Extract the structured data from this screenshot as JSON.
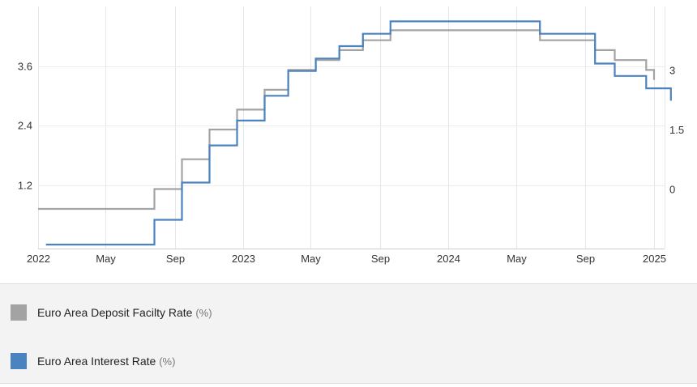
{
  "chart_data": {
    "type": "line",
    "step": true,
    "x_labels": [
      "2022",
      "May",
      "Sep",
      "2023",
      "May",
      "Sep",
      "2024",
      "May",
      "Sep",
      "2025"
    ],
    "x_tick_dates": [
      "2022-01",
      "2022-05",
      "2022-09",
      "2023-01",
      "2023-05",
      "2023-09",
      "2024-01",
      "2024-05",
      "2024-09",
      "2025-01"
    ],
    "xlim": [
      "2022-01",
      "2025-02"
    ],
    "y_left": {
      "ticks": [
        1.2,
        2.4,
        3.6
      ],
      "tick_labels": [
        "1.2",
        "2.4",
        "3.6"
      ],
      "range": [
        -0.08,
        4.8
      ]
    },
    "y_right": {
      "ticks": [
        0,
        1.5,
        3
      ],
      "tick_labels": [
        "0",
        "1.5",
        "3"
      ],
      "range": [
        -1.5,
        4.6
      ]
    },
    "grid": true,
    "legend_position": "bottom",
    "series": [
      {
        "name": "Euro Area Deposit Facilty Rate",
        "unit": "(%)",
        "axis": "right",
        "color": "#a3a3a3",
        "points": [
          [
            "2022-01-01",
            -0.5
          ],
          [
            "2022-07-27",
            0
          ],
          [
            "2022-09-14",
            0.75
          ],
          [
            "2022-11-02",
            1.5
          ],
          [
            "2022-12-21",
            2
          ],
          [
            "2023-02-08",
            2.5
          ],
          [
            "2023-03-22",
            3
          ],
          [
            "2023-05-10",
            3.25
          ],
          [
            "2023-06-21",
            3.5
          ],
          [
            "2023-08-02",
            3.75
          ],
          [
            "2023-09-20",
            4
          ],
          [
            "2024-06-12",
            3.75
          ],
          [
            "2024-09-18",
            3.5
          ],
          [
            "2024-10-23",
            3.25
          ],
          [
            "2024-12-18",
            3
          ],
          [
            "2025-01-01",
            2.75
          ]
        ]
      },
      {
        "name": "Euro Area Interest Rate",
        "unit": "(%)",
        "axis": "left",
        "color": "#4b82c0",
        "points": [
          [
            "2022-01-15",
            0
          ],
          [
            "2022-07-27",
            0.5
          ],
          [
            "2022-09-14",
            1.25
          ],
          [
            "2022-11-02",
            2
          ],
          [
            "2022-12-21",
            2.5
          ],
          [
            "2023-02-08",
            3
          ],
          [
            "2023-03-22",
            3.5
          ],
          [
            "2023-05-10",
            3.75
          ],
          [
            "2023-06-21",
            4
          ],
          [
            "2023-08-02",
            4.25
          ],
          [
            "2023-09-20",
            4.5
          ],
          [
            "2024-06-12",
            4.25
          ],
          [
            "2024-09-18",
            3.65
          ],
          [
            "2024-10-23",
            3.4
          ],
          [
            "2024-12-18",
            3.15
          ],
          [
            "2025-01-31",
            2.9
          ]
        ]
      }
    ]
  }
}
